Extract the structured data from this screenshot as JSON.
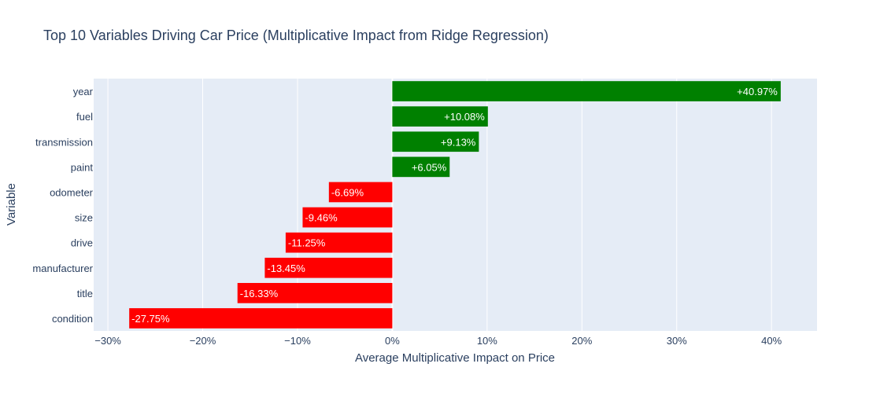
{
  "chart_data": {
    "type": "bar",
    "orientation": "horizontal",
    "title": "Top 10 Variables Driving Car Price (Multiplicative Impact from Ridge Regression)",
    "xlabel": "Average Multiplicative Impact on Price",
    "ylabel": "Variable",
    "categories": [
      "year",
      "fuel",
      "transmission",
      "paint",
      "odometer",
      "size",
      "drive",
      "manufacturer",
      "title",
      "condition"
    ],
    "values": [
      40.97,
      10.08,
      9.13,
      6.05,
      -6.69,
      -9.46,
      -11.25,
      -13.45,
      -16.33,
      -27.75
    ],
    "data_labels": [
      "+40.97%",
      "+10.08%",
      "+9.13%",
      "+6.05%",
      "-6.69%",
      "-9.46%",
      "-11.25%",
      "-13.45%",
      "-16.33%",
      "-27.75%"
    ],
    "xlim": [
      -31.5,
      44.8
    ],
    "xticks": [
      -30,
      -20,
      -10,
      0,
      10,
      20,
      30,
      40
    ],
    "xtick_labels": [
      "−30%",
      "−20%",
      "−10%",
      "0%",
      "10%",
      "20%",
      "30%",
      "40%"
    ],
    "grid": true,
    "colors": {
      "positive": "#008000",
      "negative": "#ff0000",
      "plot_bg": "#e5ecf6",
      "grid": "#ffffff",
      "text": "#2a3f5f",
      "label_text": "#ffffff"
    }
  }
}
